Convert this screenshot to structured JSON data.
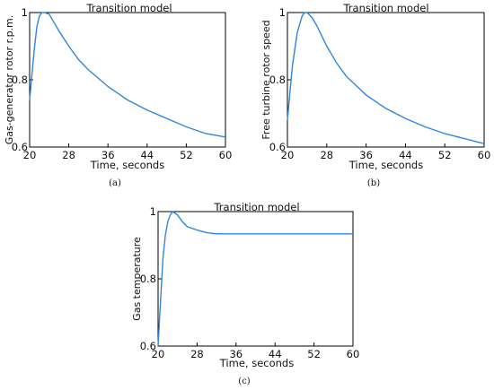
{
  "figure": {
    "line_color": "#2e86de"
  },
  "chart_data": [
    {
      "type": "line",
      "panel_label": "(a)",
      "title": "Transition model",
      "xlabel": "Time, seconds",
      "ylabel": "Gas-generator rotor r.p.m.",
      "xlim": [
        20,
        60
      ],
      "ylim": [
        0.6,
        1.0
      ],
      "xticks": [
        "20",
        "28",
        "36",
        "44",
        "52",
        "60"
      ],
      "yticks": [
        "0.6",
        "0.8",
        "1"
      ],
      "x": [
        20,
        20.5,
        21,
        21.5,
        22,
        22.5,
        23,
        24,
        25,
        26,
        28,
        30,
        32,
        36,
        40,
        44,
        48,
        52,
        56,
        60
      ],
      "y": [
        0.74,
        0.82,
        0.9,
        0.96,
        0.99,
        1.0,
        1.0,
        0.995,
        0.97,
        0.945,
        0.9,
        0.86,
        0.83,
        0.78,
        0.74,
        0.71,
        0.685,
        0.66,
        0.64,
        0.63
      ],
      "series": [
        {
          "values": [
            0.74,
            0.82,
            0.9,
            0.96,
            0.99,
            1.0,
            1.0,
            0.995,
            0.97,
            0.945,
            0.9,
            0.86,
            0.83,
            0.78,
            0.74,
            0.71,
            0.685,
            0.66,
            0.64,
            0.63
          ]
        }
      ],
      "grid": false
    },
    {
      "type": "line",
      "panel_label": "(b)",
      "title": "Transition model",
      "xlabel": "Time, seconds",
      "ylabel": "Free turbine rotor speed",
      "xlim": [
        20,
        60
      ],
      "ylim": [
        0.6,
        1.0
      ],
      "xticks": [
        "20",
        "28",
        "36",
        "44",
        "52",
        "60"
      ],
      "yticks": [
        "0.6",
        "0.8",
        "1"
      ],
      "x": [
        20,
        20.5,
        21,
        22,
        23,
        23.5,
        24,
        25,
        26,
        28,
        30,
        32,
        36,
        40,
        44,
        48,
        52,
        56,
        60
      ],
      "y": [
        0.68,
        0.76,
        0.84,
        0.94,
        0.99,
        1.0,
        1.0,
        0.985,
        0.96,
        0.9,
        0.85,
        0.81,
        0.755,
        0.715,
        0.685,
        0.66,
        0.64,
        0.625,
        0.61
      ],
      "series": [
        {
          "values": [
            0.68,
            0.76,
            0.84,
            0.94,
            0.99,
            1.0,
            1.0,
            0.985,
            0.96,
            0.9,
            0.85,
            0.81,
            0.755,
            0.715,
            0.685,
            0.66,
            0.64,
            0.625,
            0.61
          ]
        }
      ],
      "grid": false
    },
    {
      "type": "line",
      "panel_label": "(c)",
      "title": "Transition model",
      "xlabel": "Time, seconds",
      "ylabel": "Gas temperature",
      "xlim": [
        20,
        60
      ],
      "ylim": [
        0.6,
        1.0
      ],
      "xticks": [
        "20",
        "28",
        "36",
        "44",
        "52",
        "60"
      ],
      "yticks": [
        "0.6",
        "0.8",
        "1"
      ],
      "x": [
        20,
        20.3,
        20.6,
        21,
        21.5,
        22,
        22.5,
        23,
        24,
        25,
        26,
        28,
        30,
        32,
        36,
        40,
        44,
        48,
        52,
        56,
        60
      ],
      "y": [
        0.6,
        0.68,
        0.76,
        0.86,
        0.93,
        0.97,
        0.99,
        1.0,
        0.99,
        0.97,
        0.955,
        0.945,
        0.937,
        0.934,
        0.934,
        0.934,
        0.934,
        0.934,
        0.934,
        0.934,
        0.934
      ],
      "series": [
        {
          "values": [
            0.6,
            0.68,
            0.76,
            0.86,
            0.93,
            0.97,
            0.99,
            1.0,
            0.99,
            0.97,
            0.955,
            0.945,
            0.937,
            0.934,
            0.934,
            0.934,
            0.934,
            0.934,
            0.934,
            0.934,
            0.934
          ]
        }
      ],
      "grid": false
    }
  ]
}
